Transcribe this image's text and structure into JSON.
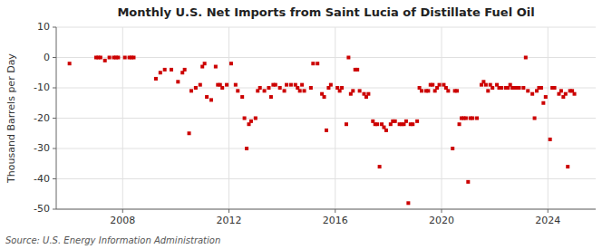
{
  "chart_data": {
    "type": "scatter",
    "title": "Monthly U.S. Net Imports from Saint Lucia of Distillate Fuel Oil",
    "ylabel": "Thousand Barrels per Day",
    "source": "Source: U.S. Energy Information Administration",
    "xlim": [
      2005.5,
      2025.8
    ],
    "xticks": [
      2008,
      2012,
      2016,
      2020,
      2024
    ],
    "ylim": [
      -50,
      10
    ],
    "yticks": [
      -50,
      -40,
      -30,
      -20,
      -10,
      0,
      10
    ],
    "grid": true,
    "color": "#cc0000",
    "marker": "square",
    "x": [
      2006.0,
      2007.0,
      2007.083,
      2007.167,
      2007.333,
      2007.5,
      2007.667,
      2007.75,
      2007.833,
      2008.083,
      2008.25,
      2008.333,
      2008.417,
      2009.25,
      2009.417,
      2009.583,
      2009.833,
      2010.083,
      2010.25,
      2010.333,
      2010.5,
      2010.583,
      2010.75,
      2010.917,
      2011.0,
      2011.083,
      2011.167,
      2011.333,
      2011.5,
      2011.583,
      2011.667,
      2011.75,
      2011.917,
      2012.083,
      2012.25,
      2012.333,
      2012.5,
      2012.583,
      2012.667,
      2012.75,
      2012.833,
      2013.0,
      2013.083,
      2013.167,
      2013.333,
      2013.5,
      2013.583,
      2013.667,
      2013.75,
      2013.917,
      2014.083,
      2014.167,
      2014.333,
      2014.5,
      2014.583,
      2014.667,
      2014.75,
      2014.833,
      2015.083,
      2015.167,
      2015.333,
      2015.5,
      2015.583,
      2015.667,
      2015.75,
      2015.833,
      2016.083,
      2016.167,
      2016.25,
      2016.417,
      2016.5,
      2016.583,
      2016.667,
      2016.75,
      2016.833,
      2016.917,
      2017.083,
      2017.167,
      2017.25,
      2017.417,
      2017.5,
      2017.583,
      2017.667,
      2017.75,
      2017.833,
      2017.917,
      2018.083,
      2018.167,
      2018.25,
      2018.417,
      2018.5,
      2018.583,
      2018.667,
      2018.75,
      2018.833,
      2018.917,
      2019.083,
      2019.167,
      2019.25,
      2019.417,
      2019.5,
      2019.583,
      2019.667,
      2019.75,
      2019.833,
      2019.917,
      2020.083,
      2020.167,
      2020.25,
      2020.417,
      2020.5,
      2020.583,
      2020.667,
      2020.75,
      2020.833,
      2020.917,
      2021.0,
      2021.083,
      2021.167,
      2021.333,
      2021.5,
      2021.583,
      2021.667,
      2021.75,
      2021.833,
      2021.917,
      2022.083,
      2022.167,
      2022.25,
      2022.417,
      2022.5,
      2022.583,
      2022.667,
      2022.75,
      2022.833,
      2022.917,
      2023.083,
      2023.167,
      2023.25,
      2023.417,
      2023.5,
      2023.583,
      2023.667,
      2023.75,
      2023.833,
      2023.917,
      2024.083,
      2024.167,
      2024.25,
      2024.417,
      2024.5,
      2024.583,
      2024.667,
      2024.75,
      2024.833,
      2024.917,
      2025.0
    ],
    "values": [
      -2,
      0,
      0,
      0,
      -1,
      0,
      0,
      0,
      0,
      0,
      0,
      0,
      0,
      -7,
      -5,
      -4,
      -4,
      -8,
      -5,
      -4,
      -25,
      -11,
      -10,
      -9,
      -3,
      -2,
      -13,
      -14,
      -3,
      -9,
      -9,
      -10,
      -9,
      -2,
      -9,
      -11,
      -13,
      -20,
      -30,
      -22,
      -21,
      -20,
      -11,
      -10,
      -11,
      -10,
      -13,
      -9,
      -9,
      -10,
      -11,
      -9,
      -9,
      -9,
      -10,
      -11,
      -9,
      -11,
      -10,
      -2,
      -2,
      -12,
      -13,
      -24,
      -10,
      -9,
      -10,
      -11,
      -10,
      -22,
      0,
      -12,
      -11,
      -4,
      -4,
      -11,
      -12,
      -13,
      -12,
      -21,
      -22,
      -22,
      -36,
      -22,
      -23,
      -24,
      -22,
      -21,
      -21,
      -22,
      -22,
      -22,
      -21,
      -48,
      -22,
      -22,
      -21,
      -10,
      -11,
      -11,
      -11,
      -9,
      -9,
      -11,
      -10,
      -9,
      -9,
      -10,
      -11,
      -30,
      -11,
      -11,
      -22,
      -20,
      -20,
      -20,
      -41,
      -20,
      -20,
      -20,
      -9,
      -8,
      -9,
      -11,
      -9,
      -10,
      -9,
      -10,
      -10,
      -10,
      -10,
      -9,
      -10,
      -10,
      -10,
      -10,
      -10,
      0,
      -11,
      -12,
      -20,
      -11,
      -10,
      -10,
      -15,
      -13,
      -27,
      -10,
      -10,
      -12,
      -11,
      -13,
      -12,
      -36,
      -11,
      -11,
      -12
    ]
  }
}
